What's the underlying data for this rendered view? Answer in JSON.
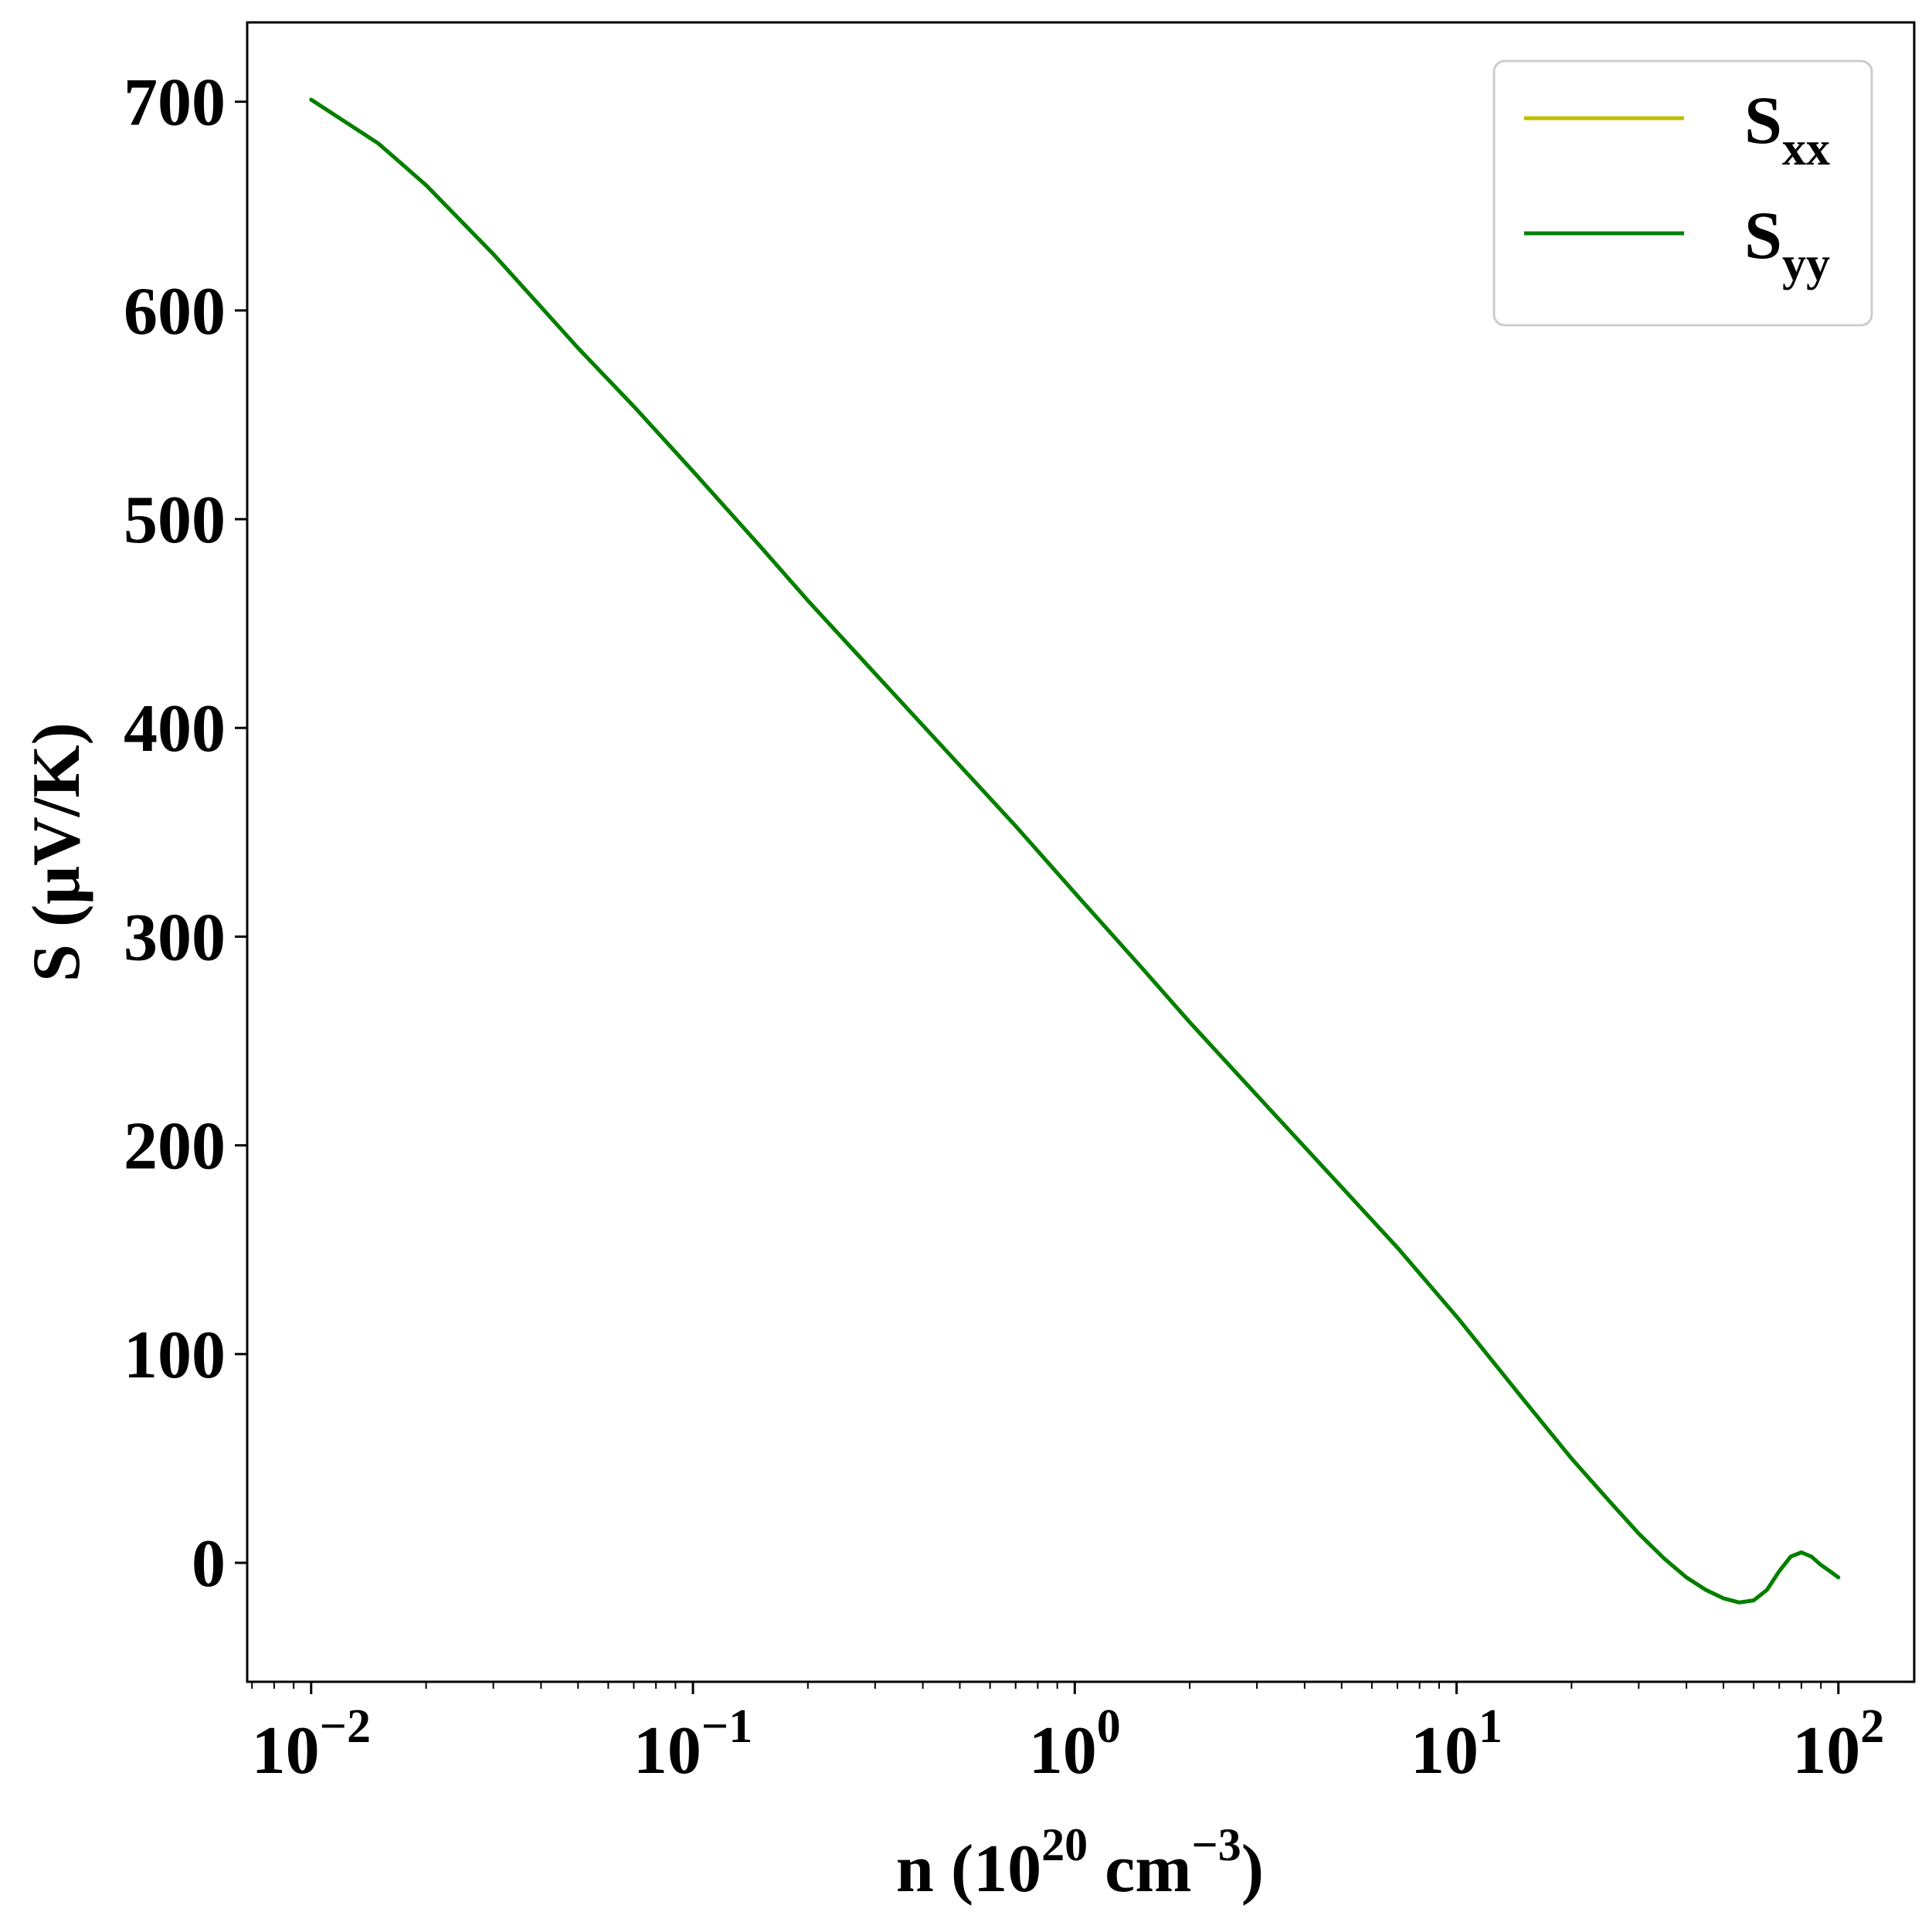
{
  "chart_data": {
    "type": "line",
    "xscale": "log",
    "xlabel": {
      "main": "n (10",
      "exp": "20",
      "mid": " cm",
      "exp2": "−3",
      "end": ")"
    },
    "ylabel": "S (μV/K)",
    "xlim": [
      0.0068,
      158
    ],
    "ylim": [
      -57,
      738
    ],
    "x_ticks": [
      {
        "value": 0.01,
        "base": "10",
        "exp": "−2"
      },
      {
        "value": 0.1,
        "base": "10",
        "exp": "−1"
      },
      {
        "value": 1,
        "base": "10",
        "exp": "0"
      },
      {
        "value": 10,
        "base": "10",
        "exp": "1"
      },
      {
        "value": 100,
        "base": "10",
        "exp": "2"
      }
    ],
    "y_ticks": [
      0,
      100,
      200,
      300,
      400,
      500,
      600,
      700
    ],
    "grid": false,
    "legend_position": "top-right",
    "series": [
      {
        "name": "S",
        "sub": "xx",
        "color": "#bfbf00",
        "x": [
          0.01,
          0.015,
          0.02,
          0.03,
          0.05,
          0.07,
          0.1,
          0.15,
          0.2,
          0.3,
          0.5,
          0.7,
          1,
          1.5,
          2,
          3,
          5,
          7,
          10,
          15,
          20,
          25,
          30,
          35,
          40,
          45,
          50,
          55,
          60,
          65,
          70,
          75,
          80,
          85,
          90,
          95,
          100
        ],
        "y": [
          701,
          680,
          660,
          627,
          582,
          554,
          523,
          487,
          461,
          426,
          382,
          353,
          321,
          285,
          259,
          224,
          180,
          151,
          118,
          78,
          50,
          30,
          14,
          2,
          -7,
          -13,
          -17,
          -19,
          -18,
          -13,
          -4,
          3,
          5,
          3,
          -1,
          -4,
          -7
        ]
      },
      {
        "name": "S",
        "sub": "yy",
        "color": "#007f00",
        "x": [
          0.01,
          0.015,
          0.02,
          0.03,
          0.05,
          0.07,
          0.1,
          0.15,
          0.2,
          0.3,
          0.5,
          0.7,
          1,
          1.5,
          2,
          3,
          5,
          7,
          10,
          15,
          20,
          25,
          30,
          35,
          40,
          45,
          50,
          55,
          60,
          65,
          70,
          75,
          80,
          85,
          90,
          95,
          100
        ],
        "y": [
          701,
          680,
          660,
          627,
          582,
          554,
          523,
          487,
          461,
          426,
          382,
          353,
          321,
          285,
          259,
          224,
          180,
          151,
          118,
          78,
          50,
          30,
          14,
          2,
          -7,
          -13,
          -17,
          -19,
          -18,
          -13,
          -4,
          3,
          5,
          3,
          -1,
          -4,
          -7
        ]
      }
    ]
  }
}
